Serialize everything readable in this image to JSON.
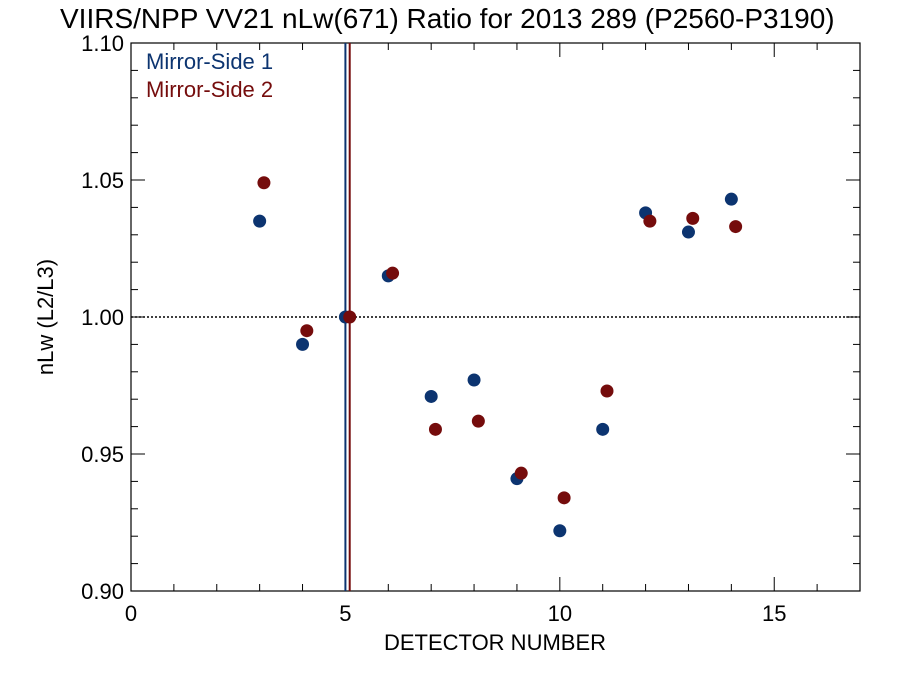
{
  "chart_data": {
    "type": "scatter",
    "title": "VIIRS/NPP VV21 nLw(671) Ratio for 2013 289 (P2560-P3190)",
    "xlabel": "DETECTOR NUMBER",
    "ylabel": "nLw (L2/L3)",
    "xlim": [
      0,
      17
    ],
    "ylim": [
      0.9,
      1.1
    ],
    "x_ticks": [
      0,
      5,
      10,
      15
    ],
    "x_tick_labels": [
      "0",
      "5",
      "10",
      "15"
    ],
    "y_ticks": [
      0.9,
      0.95,
      1.0,
      1.05,
      1.1
    ],
    "y_tick_labels": [
      "0.90",
      "0.95",
      "1.00",
      "1.05",
      "1.10"
    ],
    "grid": false,
    "reference_line_y": 1.0,
    "legend_position": "top-left",
    "series": [
      {
        "name": "Mirror-Side 1",
        "color": "#0c3470",
        "x": [
          3,
          4,
          5,
          6,
          7,
          8,
          9,
          10,
          11,
          12,
          13,
          14
        ],
        "y": [
          1.035,
          0.99,
          1.0,
          1.015,
          0.971,
          0.977,
          0.941,
          0.922,
          0.959,
          1.038,
          1.031,
          1.043
        ],
        "reference_x": 5
      },
      {
        "name": "Mirror-Side 2",
        "color": "#750c0c",
        "x": [
          3.1,
          4.1,
          5.1,
          6.1,
          7.1,
          8.1,
          9.1,
          10.1,
          11.1,
          12.1,
          13.1,
          14.1
        ],
        "y": [
          1.049,
          0.995,
          1.0,
          1.016,
          0.959,
          0.962,
          0.943,
          0.934,
          0.973,
          1.035,
          1.036,
          1.033
        ],
        "reference_x": 5.1
      }
    ]
  }
}
